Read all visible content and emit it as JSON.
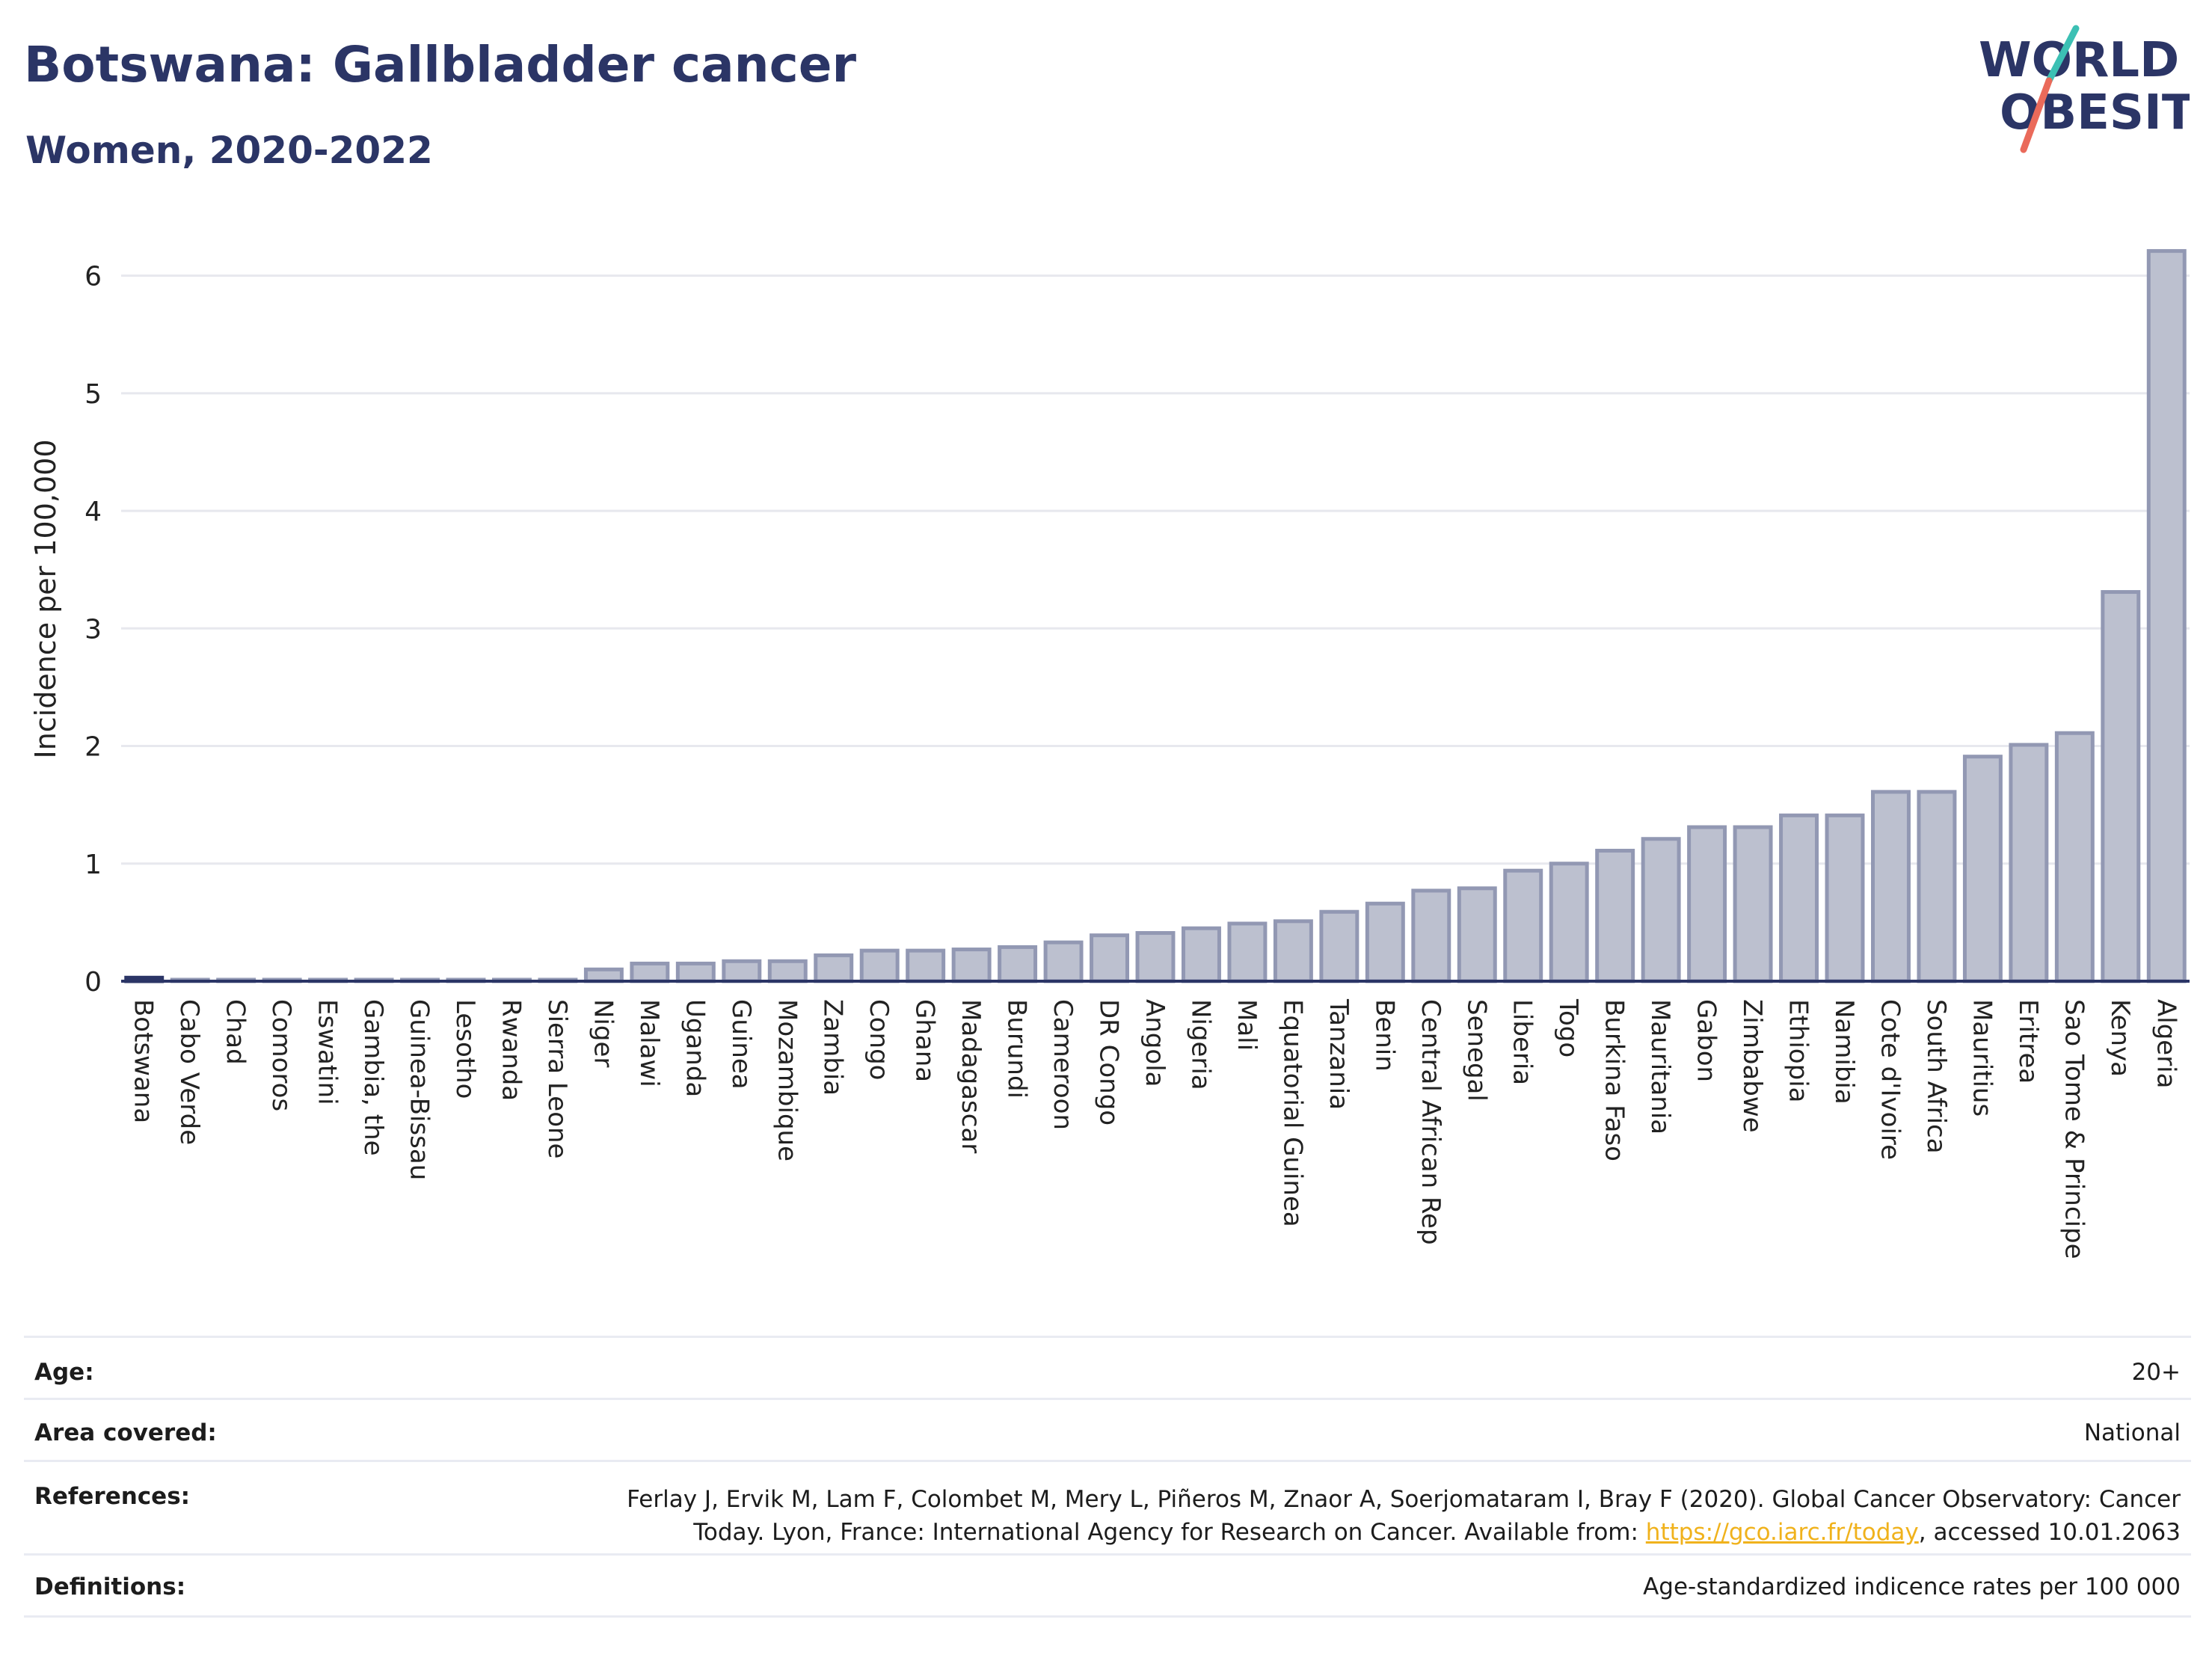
{
  "header": {
    "title": "Botswana: Gallbladder cancer",
    "subtitle": "Women, 2020-2022",
    "logo_text_line1": "WORLD",
    "logo_text_line2": "OBESITY"
  },
  "colors": {
    "title": "#2b3566",
    "bar_fill": "#bcc0cf",
    "bar_stroke": "#9298b3",
    "highlight": "#2b3566",
    "link": "#f0b21c"
  },
  "chart_data": {
    "type": "bar",
    "title": "Botswana: Gallbladder cancer",
    "ylabel": "Incidence per 100,000",
    "xlabel": "",
    "ylim": [
      0,
      6.5
    ],
    "yticks": [
      0,
      1,
      2,
      3,
      4,
      5,
      6
    ],
    "grid": true,
    "highlight_category": "Botswana",
    "categories": [
      "Botswana",
      "Cabo Verde",
      "Chad",
      "Comoros",
      "Eswatini",
      "Gambia, the",
      "Guinea-Bissau",
      "Lesotho",
      "Rwanda",
      "Sierra Leone",
      "Niger",
      "Malawi",
      "Uganda",
      "Guinea",
      "Mozambique",
      "Zambia",
      "Congo",
      "Ghana",
      "Madagascar",
      "Burundi",
      "Cameroon",
      "DR Congo",
      "Angola",
      "Nigeria",
      "Mali",
      "Equatorial Guinea",
      "Tanzania",
      "Benin",
      "Central African Rep",
      "Senegal",
      "Liberia",
      "Togo",
      "Burkina Faso",
      "Mauritania",
      "Gabon",
      "Zimbabwe",
      "Ethiopia",
      "Namibia",
      "Cote d'Ivoire",
      "South Africa",
      "Mauritius",
      "Eritrea",
      "Sao Tome & Principe",
      "Kenya",
      "Algeria"
    ],
    "values": [
      0.03,
      0.01,
      0.01,
      0.01,
      0.01,
      0.01,
      0.01,
      0.01,
      0.01,
      0.01,
      0.1,
      0.15,
      0.15,
      0.17,
      0.17,
      0.22,
      0.26,
      0.26,
      0.27,
      0.29,
      0.33,
      0.39,
      0.41,
      0.45,
      0.49,
      0.51,
      0.59,
      0.66,
      0.77,
      0.79,
      0.94,
      1.0,
      1.11,
      1.21,
      1.31,
      1.31,
      1.41,
      1.41,
      1.61,
      1.61,
      1.91,
      2.01,
      2.11,
      3.31,
      6.21
    ]
  },
  "info_table": {
    "age_label": "Age:",
    "age_value": "20+",
    "area_label": "Area covered:",
    "area_value": "National",
    "references_label": "References:",
    "references_line1": "Ferlay J, Ervik M, Lam F, Colombet M, Mery L, Piñeros M, Znaor A, Soerjomataram I, Bray F (2020). Global Cancer Observatory: Cancer",
    "references_line2_pre": "Today. Lyon, France: International Agency for Research on Cancer. Available from: ",
    "references_link": "https://gco.iarc.fr/today",
    "references_line2_post": ", accessed 10.01.2063",
    "definitions_label": "Definitions:",
    "definitions_value": "Age-standardized indicence rates per 100 000"
  }
}
